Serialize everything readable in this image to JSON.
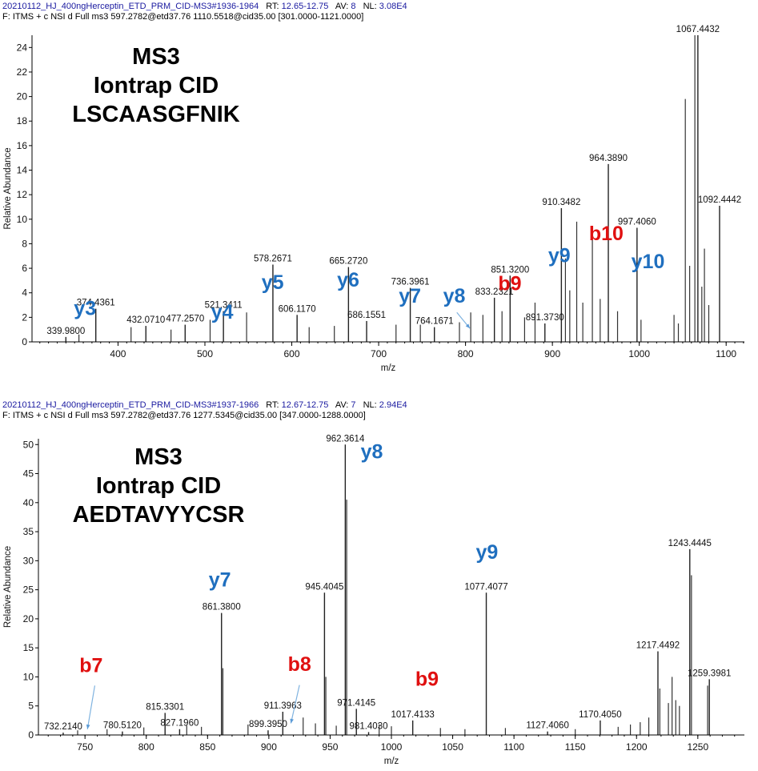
{
  "panels": [
    {
      "header": {
        "filename": "20210112_HJ_400ngHerceptin_ETD_PRM_CID-MS3",
        "scans": "#1936-1964",
        "rt_label": "RT:",
        "rt": "12.65-12.75",
        "av_label": "AV:",
        "av": "8",
        "nl_label": "NL:",
        "nl": "3.08E4",
        "filter": "F: ITMS + c NSI d Full ms3 597.2782@etd37.76 1110.5518@cid35.00 [301.0000-1121.0000]"
      },
      "title_lines": [
        "MS3",
        "Iontrap CID",
        "LSCAASGFNIK"
      ],
      "annotations": [
        {
          "text": "y3",
          "color": "#1f6fbf",
          "x": 362,
          "y": 2.2
        },
        {
          "text": "y4",
          "color": "#1f6fbf",
          "x": 520,
          "y": 1.9
        },
        {
          "text": "y5",
          "color": "#1f6fbf",
          "x": 578,
          "y": 4.3
        },
        {
          "text": "y6",
          "color": "#1f6fbf",
          "x": 665,
          "y": 4.5
        },
        {
          "text": "y7",
          "color": "#1f6fbf",
          "x": 736,
          "y": 3.2
        },
        {
          "text": "y8",
          "color": "#1f6fbf",
          "x": 787,
          "y": 3.2
        },
        {
          "text": "b9",
          "color": "#e01010",
          "x": 851,
          "y": 4.2
        },
        {
          "text": "y9",
          "color": "#1f6fbf",
          "x": 908,
          "y": 6.5
        },
        {
          "text": "b10",
          "color": "#e01010",
          "x": 962,
          "y": 8.3
        },
        {
          "text": "y10",
          "color": "#1f6fbf",
          "x": 1010,
          "y": 6.0
        }
      ],
      "arrows": [
        {
          "from_x": 790,
          "from_y": 2.4,
          "to_x": 805,
          "to_y": 1.1
        }
      ],
      "chart_data": {
        "type": "bar",
        "xlabel": "m/z",
        "ylabel": "Relative Abundance",
        "xlim": [
          301,
          1121
        ],
        "ylim": [
          0,
          25
        ],
        "xticks": [
          400,
          500,
          600,
          700,
          800,
          900,
          1000,
          1100
        ],
        "yticks": [
          0,
          2,
          4,
          6,
          8,
          10,
          12,
          14,
          16,
          18,
          20,
          22,
          24
        ],
        "labeled_peaks": [
          {
            "mz": 339.98,
            "intensity": 0.4,
            "label": "339.9800"
          },
          {
            "mz": 374.4361,
            "intensity": 2.7,
            "label": "374.4361"
          },
          {
            "mz": 432.071,
            "intensity": 1.3,
            "label": "432.0710"
          },
          {
            "mz": 477.257,
            "intensity": 1.4,
            "label": "477.2570"
          },
          {
            "mz": 521.3411,
            "intensity": 2.5,
            "label": "521.3411"
          },
          {
            "mz": 578.2671,
            "intensity": 6.3,
            "label": "578.2671"
          },
          {
            "mz": 606.117,
            "intensity": 2.2,
            "label": "606.1170"
          },
          {
            "mz": 665.272,
            "intensity": 6.1,
            "label": "665.2720"
          },
          {
            "mz": 686.1551,
            "intensity": 1.7,
            "label": "686.1551"
          },
          {
            "mz": 736.3961,
            "intensity": 4.4,
            "label": "736.3961"
          },
          {
            "mz": 764.1671,
            "intensity": 1.2,
            "label": "764.1671"
          },
          {
            "mz": 833.2321,
            "intensity": 3.6,
            "label": "833.2321"
          },
          {
            "mz": 851.32,
            "intensity": 5.4,
            "label": "851.3200"
          },
          {
            "mz": 891.373,
            "intensity": 1.5,
            "label": "891.3730"
          },
          {
            "mz": 910.3482,
            "intensity": 10.9,
            "label": "910.3482"
          },
          {
            "mz": 964.389,
            "intensity": 14.5,
            "label": "964.3890"
          },
          {
            "mz": 997.406,
            "intensity": 9.3,
            "label": "997.4060"
          },
          {
            "mz": 1067.4432,
            "intensity": 25.0,
            "label": "1067.4432"
          },
          {
            "mz": 1092.4442,
            "intensity": 11.1,
            "label": "1092.4442"
          }
        ],
        "unlabeled_peaks": [
          {
            "mz": 1053,
            "intensity": 19.8
          },
          {
            "mz": 1064,
            "intensity": 25.0
          },
          {
            "mz": 1058,
            "intensity": 6.2
          },
          {
            "mz": 1075,
            "intensity": 7.6
          },
          {
            "mz": 1072,
            "intensity": 4.5
          },
          {
            "mz": 1080,
            "intensity": 3.0
          },
          {
            "mz": 946,
            "intensity": 8.4
          },
          {
            "mz": 928,
            "intensity": 9.8
          },
          {
            "mz": 915,
            "intensity": 6.8
          },
          {
            "mz": 920,
            "intensity": 4.2
          },
          {
            "mz": 955,
            "intensity": 3.5
          },
          {
            "mz": 935,
            "intensity": 3.2
          },
          {
            "mz": 975,
            "intensity": 2.5
          },
          {
            "mz": 1002,
            "intensity": 1.8
          },
          {
            "mz": 1040,
            "intensity": 2.2
          },
          {
            "mz": 1045,
            "intensity": 1.5
          },
          {
            "mz": 880,
            "intensity": 3.2
          },
          {
            "mz": 868,
            "intensity": 2.0
          },
          {
            "mz": 842,
            "intensity": 2.5
          },
          {
            "mz": 820,
            "intensity": 2.2
          },
          {
            "mz": 806,
            "intensity": 2.4
          },
          {
            "mz": 793,
            "intensity": 1.6
          },
          {
            "mz": 748,
            "intensity": 1.4
          },
          {
            "mz": 720,
            "intensity": 1.4
          },
          {
            "mz": 649,
            "intensity": 1.3
          },
          {
            "mz": 620,
            "intensity": 1.2
          },
          {
            "mz": 548,
            "intensity": 2.4
          },
          {
            "mz": 506,
            "intensity": 1.8
          },
          {
            "mz": 461,
            "intensity": 1.0
          },
          {
            "mz": 415,
            "intensity": 1.2
          },
          {
            "mz": 355,
            "intensity": 0.6
          }
        ]
      }
    },
    {
      "header": {
        "filename": "20210112_HJ_400ngHerceptin_ETD_PRM_CID-MS3",
        "scans": "#1937-1966",
        "rt_label": "RT:",
        "rt": "12.67-12.75",
        "av_label": "AV:",
        "av": "7",
        "nl_label": "NL:",
        "nl": "2.94E4",
        "filter": "F: ITMS + c NSI d Full ms3 597.2782@etd37.76 1277.5345@cid35.00 [347.0000-1288.0000]"
      },
      "title_lines": [
        "MS3",
        "Iontrap CID",
        "AEDTAVYYCSR"
      ],
      "annotations": [
        {
          "text": "b7",
          "color": "#e01010",
          "x": 755,
          "y": 10.8
        },
        {
          "text": "y7",
          "color": "#1f6fbf",
          "x": 860,
          "y": 25.6
        },
        {
          "text": "b8",
          "color": "#e01010",
          "x": 925,
          "y": 11.0
        },
        {
          "text": "y8",
          "color": "#1f6fbf",
          "x": 984,
          "y": 47.6
        },
        {
          "text": "b9",
          "color": "#e01010",
          "x": 1029,
          "y": 8.5
        },
        {
          "text": "y9",
          "color": "#1f6fbf",
          "x": 1078,
          "y": 30.3
        }
      ],
      "arrows": [
        {
          "from_x": 758,
          "from_y": 8.5,
          "to_x": 752,
          "to_y": 1.0
        },
        {
          "from_x": 925,
          "from_y": 8.6,
          "to_x": 918,
          "to_y": 2.0
        }
      ],
      "chart_data": {
        "type": "bar",
        "xlabel": "m/z",
        "ylabel": "Relative Abundance",
        "xlim": [
          712,
          1288
        ],
        "ylim": [
          0,
          51
        ],
        "xticks": [
          750,
          800,
          850,
          900,
          950,
          1000,
          1050,
          1100,
          1150,
          1200,
          1250
        ],
        "yticks": [
          0,
          5,
          10,
          15,
          20,
          25,
          30,
          35,
          40,
          45,
          50
        ],
        "labeled_peaks": [
          {
            "mz": 732.214,
            "intensity": 0.4,
            "label": "732.2140"
          },
          {
            "mz": 780.512,
            "intensity": 0.6,
            "label": "780.5120"
          },
          {
            "mz": 815.3301,
            "intensity": 3.8,
            "label": "815.3301"
          },
          {
            "mz": 827.196,
            "intensity": 1.0,
            "label": "827.1960"
          },
          {
            "mz": 861.38,
            "intensity": 21.0,
            "label": "861.3800"
          },
          {
            "mz": 899.395,
            "intensity": 0.8,
            "label": "899.3950"
          },
          {
            "mz": 911.3963,
            "intensity": 4.0,
            "label": "911.3963"
          },
          {
            "mz": 945.4045,
            "intensity": 24.5,
            "label": "945.4045"
          },
          {
            "mz": 962.3614,
            "intensity": 50.0,
            "label": "962.3614"
          },
          {
            "mz": 971.4145,
            "intensity": 4.5,
            "label": "971.4145"
          },
          {
            "mz": 981.403,
            "intensity": 0.5,
            "label": "981.4030"
          },
          {
            "mz": 1017.4133,
            "intensity": 2.5,
            "label": "1017.4133"
          },
          {
            "mz": 1077.4077,
            "intensity": 24.5,
            "label": "1077.4077"
          },
          {
            "mz": 1127.406,
            "intensity": 0.6,
            "label": "1127.4060"
          },
          {
            "mz": 1170.405,
            "intensity": 2.5,
            "label": "1170.4050"
          },
          {
            "mz": 1217.4492,
            "intensity": 14.4,
            "label": "1217.4492"
          },
          {
            "mz": 1243.4445,
            "intensity": 32.0,
            "label": "1243.4445"
          },
          {
            "mz": 1259.3981,
            "intensity": 9.6,
            "label": "1259.3981"
          }
        ],
        "unlabeled_peaks": [
          {
            "mz": 963.5,
            "intensity": 40.5
          },
          {
            "mz": 862.5,
            "intensity": 11.5
          },
          {
            "mz": 1244.8,
            "intensity": 27.5
          },
          {
            "mz": 1219,
            "intensity": 8.0
          },
          {
            "mz": 1229,
            "intensity": 10.0
          },
          {
            "mz": 1232,
            "intensity": 6.0
          },
          {
            "mz": 1235,
            "intensity": 5.0
          },
          {
            "mz": 1226,
            "intensity": 5.5
          },
          {
            "mz": 1258,
            "intensity": 8.5
          },
          {
            "mz": 1210,
            "intensity": 3.0
          },
          {
            "mz": 1203,
            "intensity": 2.2
          },
          {
            "mz": 1195,
            "intensity": 1.8
          },
          {
            "mz": 946.5,
            "intensity": 10.0
          },
          {
            "mz": 938,
            "intensity": 2.0
          },
          {
            "mz": 928,
            "intensity": 3.0
          },
          {
            "mz": 955,
            "intensity": 1.6
          },
          {
            "mz": 990,
            "intensity": 1.8
          },
          {
            "mz": 1000,
            "intensity": 1.5
          },
          {
            "mz": 1040,
            "intensity": 1.2
          },
          {
            "mz": 1060,
            "intensity": 1.0
          },
          {
            "mz": 1093,
            "intensity": 1.2
          },
          {
            "mz": 1150,
            "intensity": 1.0
          },
          {
            "mz": 1185,
            "intensity": 1.4
          },
          {
            "mz": 883,
            "intensity": 1.8
          },
          {
            "mz": 845,
            "intensity": 1.4
          },
          {
            "mz": 833,
            "intensity": 1.6
          },
          {
            "mz": 798,
            "intensity": 1.3
          },
          {
            "mz": 768,
            "intensity": 1.0
          },
          {
            "mz": 744,
            "intensity": 0.8
          }
        ]
      }
    }
  ]
}
